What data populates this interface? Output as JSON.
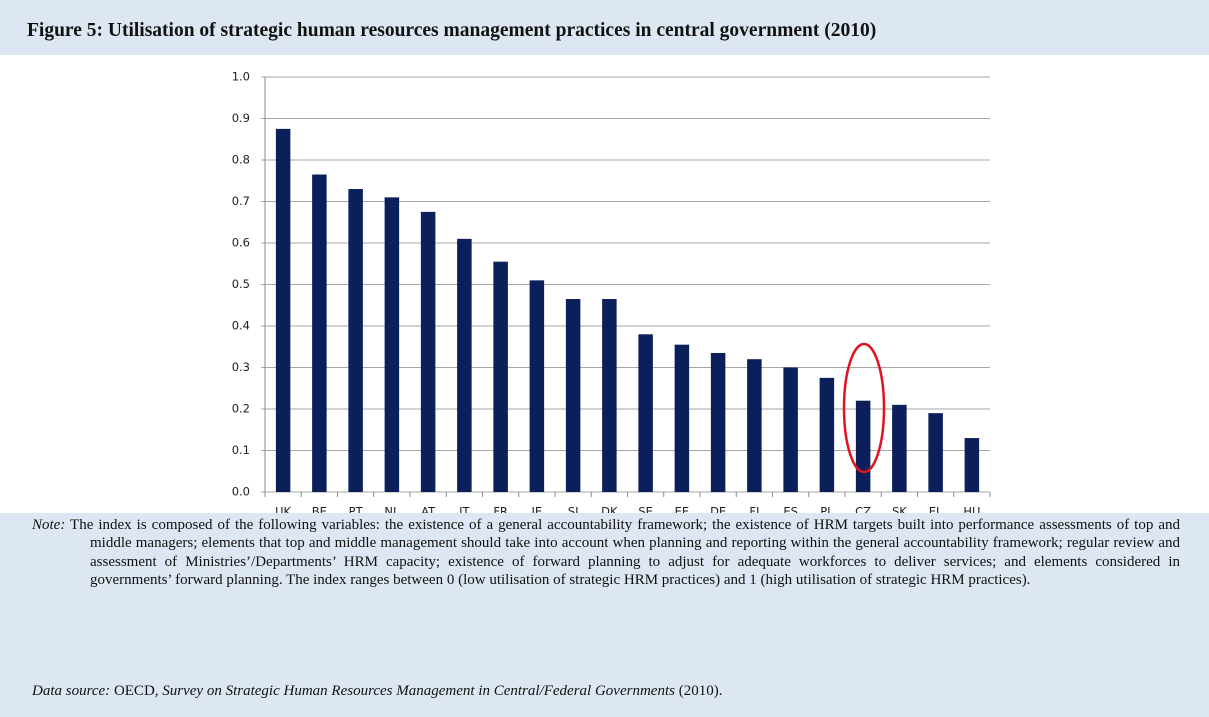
{
  "chart_data": {
    "type": "bar",
    "title": "Figure 5: Utilisation of strategic human resources management practices in central government (2010)",
    "categories": [
      "UK",
      "BE",
      "PT",
      "NL",
      "AT",
      "IT",
      "FR",
      "IE",
      "SI",
      "DK",
      "SE",
      "EE",
      "DE",
      "FI",
      "ES",
      "PL",
      "CZ",
      "SK",
      "EL",
      "HU"
    ],
    "values": [
      0.875,
      0.765,
      0.73,
      0.71,
      0.675,
      0.61,
      0.555,
      0.51,
      0.465,
      0.465,
      0.38,
      0.355,
      0.335,
      0.32,
      0.3,
      0.275,
      0.22,
      0.21,
      0.19,
      0.13
    ],
    "color": "#0b1f5b",
    "ylim": [
      0,
      1
    ],
    "yticks": [
      {
        "value": 0,
        "label": "0.0"
      },
      0.1,
      0.2,
      0.3,
      0.4,
      0.5,
      0.6,
      0.7,
      0.8,
      0.9,
      {
        "value": 1,
        "label": "1.0"
      }
    ],
    "grid": true,
    "note": {
      "label": "Note:",
      "text": "The index is composed of the following variables: the existence of a general accountability framework; the existence of HRM targets built into performance assessments of top and middle managers; elements that top and middle management should take into account when planning and reporting within the general accountability framework; regular review and assessment of Ministries’/Departments’ HRM capacity; existence of forward planning to adjust for adequate workforces to deliver services; and elements considered in governments’ forward planning. The index ranges between 0 (low utilisation of strategic HRM practices) and 1 (high utilisation of strategic HRM practices)."
    },
    "source": {
      "label": "Data source:",
      "publisher": "OECD,",
      "survey": "Survey on Strategic Human Resources Management in Central/Federal Governments",
      "year": "(2010)."
    }
  }
}
